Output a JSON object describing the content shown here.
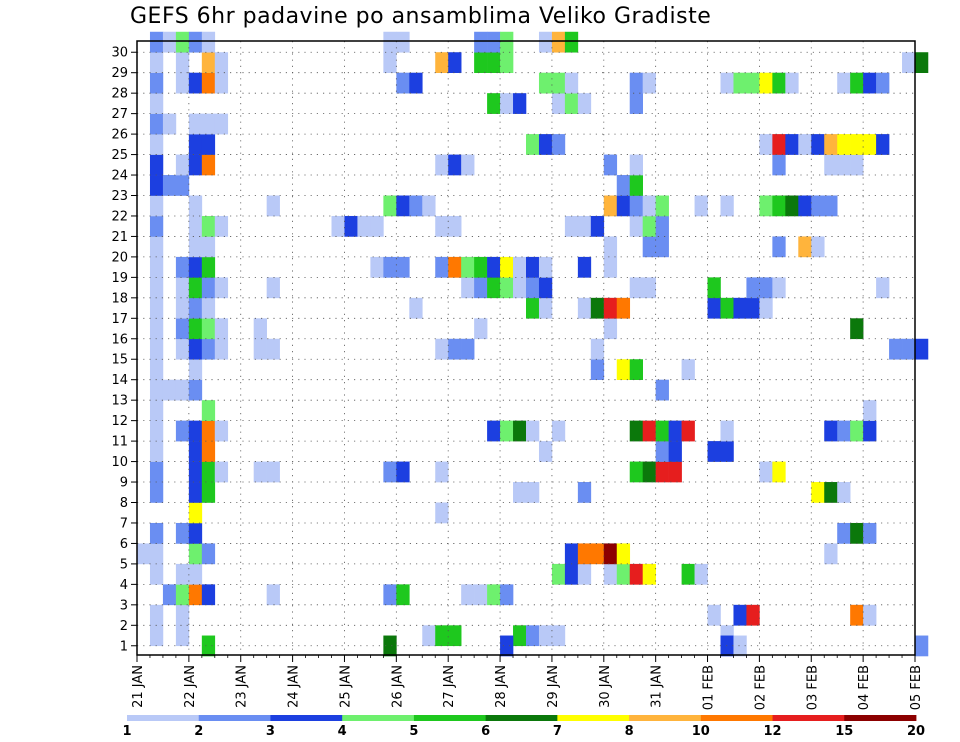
{
  "chart_data": {
    "type": "heatmap",
    "title": "GEFS 6hr padavine po ansamblima Veliko Gradiste",
    "xlabel": "",
    "ylabel": "",
    "x_ticks": [
      "21 JAN",
      "22 JAN",
      "23 JAN",
      "24 JAN",
      "25 JAN",
      "26 JAN",
      "27 JAN",
      "28 JAN",
      "29 JAN",
      "30 JAN",
      "31 JAN",
      "01 FEB",
      "02 FEB",
      "03 FEB",
      "04 FEB",
      "05 FEB"
    ],
    "y_ticks": [
      "1",
      "2",
      "3",
      "4",
      "5",
      "6",
      "7",
      "8",
      "9",
      "10",
      "11",
      "12",
      "13",
      "14",
      "15",
      "16",
      "17",
      "18",
      "19",
      "20",
      "21",
      "22",
      "23",
      "24",
      "25",
      "26",
      "27",
      "28",
      "29",
      "30"
    ],
    "color_scale": {
      "levels": [
        "1",
        "2",
        "3",
        "4",
        "5",
        "6",
        "7",
        "8",
        "10",
        "12",
        "15",
        "20"
      ],
      "colors": [
        "#b9c9f7",
        "#6a8ef2",
        "#1c3fe0",
        "#6ef06e",
        "#1ec81e",
        "#0b780b",
        "#ffff00",
        "#ffb43c",
        "#ff7800",
        "#e61e1e",
        "#8c0000"
      ]
    },
    "cells": [
      [
        1,
        1,
        1
      ],
      [
        1,
        3,
        1
      ],
      [
        1,
        22,
        1
      ],
      [
        1,
        23,
        5
      ],
      [
        1,
        24,
        5
      ],
      [
        1,
        29,
        5
      ],
      [
        1,
        30,
        2
      ],
      [
        1,
        31,
        1
      ],
      [
        1,
        32,
        1
      ],
      [
        1,
        45,
        1
      ],
      [
        2,
        1,
        1
      ],
      [
        2,
        3,
        1
      ],
      [
        2,
        44,
        1
      ],
      [
        2,
        46,
        3
      ],
      [
        2,
        47,
        10
      ],
      [
        2,
        55,
        9
      ],
      [
        2,
        56,
        1
      ],
      [
        3,
        2,
        2
      ],
      [
        3,
        3,
        4
      ],
      [
        3,
        4,
        9
      ],
      [
        3,
        5,
        3
      ],
      [
        3,
        10,
        1
      ],
      [
        3,
        19,
        2
      ],
      [
        3,
        20,
        5
      ],
      [
        3,
        25,
        1
      ],
      [
        3,
        26,
        1
      ],
      [
        3,
        27,
        4
      ],
      [
        3,
        28,
        2
      ],
      [
        4,
        1,
        1
      ],
      [
        4,
        3,
        1
      ],
      [
        4,
        4,
        1
      ],
      [
        4,
        32,
        4
      ],
      [
        4,
        33,
        3
      ],
      [
        4,
        34,
        1
      ],
      [
        4,
        36,
        1
      ],
      [
        4,
        37,
        4
      ],
      [
        4,
        38,
        10
      ],
      [
        4,
        39,
        7
      ],
      [
        4,
        42,
        5
      ],
      [
        4,
        43,
        1
      ],
      [
        5,
        0,
        1
      ],
      [
        5,
        1,
        1
      ],
      [
        5,
        4,
        4
      ],
      [
        5,
        5,
        2
      ],
      [
        5,
        33,
        3
      ],
      [
        5,
        34,
        9
      ],
      [
        5,
        35,
        9
      ],
      [
        5,
        36,
        11
      ],
      [
        5,
        37,
        7
      ],
      [
        5,
        53,
        1
      ],
      [
        6,
        1,
        2
      ],
      [
        6,
        3,
        2
      ],
      [
        6,
        4,
        3
      ],
      [
        6,
        54,
        2
      ],
      [
        6,
        55,
        6
      ],
      [
        6,
        56,
        2
      ],
      [
        7,
        4,
        7
      ],
      [
        7,
        23,
        1
      ],
      [
        8,
        1,
        2
      ],
      [
        8,
        4,
        3
      ],
      [
        8,
        5,
        5
      ],
      [
        8,
        29,
        1
      ],
      [
        8,
        30,
        1
      ],
      [
        8,
        34,
        2
      ],
      [
        8,
        52,
        7
      ],
      [
        8,
        53,
        6
      ],
      [
        8,
        54,
        1
      ],
      [
        9,
        1,
        2
      ],
      [
        9,
        4,
        3
      ],
      [
        9,
        5,
        5
      ],
      [
        9,
        6,
        1
      ],
      [
        9,
        9,
        1
      ],
      [
        9,
        10,
        1
      ],
      [
        9,
        19,
        2
      ],
      [
        9,
        20,
        3
      ],
      [
        9,
        23,
        1
      ],
      [
        9,
        38,
        5
      ],
      [
        9,
        39,
        6
      ],
      [
        9,
        40,
        10
      ],
      [
        9,
        41,
        10
      ],
      [
        9,
        48,
        1
      ],
      [
        9,
        49,
        7
      ],
      [
        10,
        1,
        1
      ],
      [
        10,
        4,
        3
      ],
      [
        10,
        5,
        9
      ],
      [
        10,
        31,
        1
      ],
      [
        10,
        40,
        2
      ],
      [
        10,
        41,
        3
      ],
      [
        10,
        44,
        3
      ],
      [
        10,
        45,
        3
      ],
      [
        11,
        1,
        1
      ],
      [
        11,
        3,
        2
      ],
      [
        11,
        4,
        3
      ],
      [
        11,
        5,
        9
      ],
      [
        11,
        6,
        1
      ],
      [
        11,
        27,
        3
      ],
      [
        11,
        28,
        4
      ],
      [
        11,
        29,
        6
      ],
      [
        11,
        30,
        1
      ],
      [
        11,
        32,
        1
      ],
      [
        11,
        38,
        6
      ],
      [
        11,
        39,
        10
      ],
      [
        11,
        40,
        5
      ],
      [
        11,
        41,
        3
      ],
      [
        11,
        42,
        10
      ],
      [
        11,
        45,
        1
      ],
      [
        11,
        53,
        3
      ],
      [
        11,
        54,
        2
      ],
      [
        11,
        55,
        4
      ],
      [
        11,
        56,
        3
      ],
      [
        12,
        1,
        1
      ],
      [
        12,
        5,
        4
      ],
      [
        12,
        56,
        1
      ],
      [
        13,
        1,
        1
      ],
      [
        13,
        2,
        1
      ],
      [
        13,
        3,
        1
      ],
      [
        13,
        4,
        2
      ],
      [
        13,
        40,
        2
      ],
      [
        14,
        1,
        1
      ],
      [
        14,
        4,
        1
      ],
      [
        14,
        35,
        2
      ],
      [
        14,
        37,
        7
      ],
      [
        14,
        38,
        5
      ],
      [
        14,
        42,
        1
      ],
      [
        15,
        1,
        1
      ],
      [
        15,
        3,
        1
      ],
      [
        15,
        4,
        3
      ],
      [
        15,
        5,
        2
      ],
      [
        15,
        6,
        1
      ],
      [
        15,
        9,
        1
      ],
      [
        15,
        10,
        1
      ],
      [
        15,
        23,
        1
      ],
      [
        15,
        24,
        2
      ],
      [
        15,
        25,
        2
      ],
      [
        15,
        35,
        1
      ],
      [
        15,
        58,
        2
      ],
      [
        15,
        59,
        2
      ],
      [
        15,
        60,
        3
      ],
      [
        16,
        1,
        1
      ],
      [
        16,
        3,
        2
      ],
      [
        16,
        4,
        5
      ],
      [
        16,
        5,
        4
      ],
      [
        16,
        6,
        1
      ],
      [
        16,
        9,
        1
      ],
      [
        16,
        26,
        1
      ],
      [
        16,
        36,
        1
      ],
      [
        16,
        55,
        6
      ],
      [
        17,
        1,
        1
      ],
      [
        17,
        3,
        1
      ],
      [
        17,
        4,
        2
      ],
      [
        17,
        5,
        1
      ],
      [
        17,
        21,
        1
      ],
      [
        17,
        30,
        5
      ],
      [
        17,
        31,
        1
      ],
      [
        17,
        34,
        1
      ],
      [
        17,
        35,
        6
      ],
      [
        17,
        36,
        10
      ],
      [
        17,
        37,
        9
      ],
      [
        17,
        44,
        3
      ],
      [
        17,
        45,
        5
      ],
      [
        17,
        46,
        3
      ],
      [
        17,
        47,
        3
      ],
      [
        17,
        48,
        1
      ],
      [
        18,
        1,
        1
      ],
      [
        18,
        3,
        1
      ],
      [
        18,
        4,
        5
      ],
      [
        18,
        5,
        2
      ],
      [
        18,
        6,
        1
      ],
      [
        18,
        10,
        1
      ],
      [
        18,
        25,
        1
      ],
      [
        18,
        26,
        2
      ],
      [
        18,
        27,
        5
      ],
      [
        18,
        28,
        4
      ],
      [
        18,
        29,
        1
      ],
      [
        18,
        30,
        2
      ],
      [
        18,
        31,
        3
      ],
      [
        18,
        38,
        1
      ],
      [
        18,
        39,
        1
      ],
      [
        18,
        44,
        5
      ],
      [
        18,
        47,
        2
      ],
      [
        18,
        48,
        2
      ],
      [
        18,
        49,
        1
      ],
      [
        18,
        57,
        1
      ],
      [
        19,
        1,
        1
      ],
      [
        19,
        3,
        2
      ],
      [
        19,
        4,
        3
      ],
      [
        19,
        5,
        5
      ],
      [
        19,
        18,
        1
      ],
      [
        19,
        19,
        2
      ],
      [
        19,
        20,
        2
      ],
      [
        19,
        23,
        2
      ],
      [
        19,
        24,
        9
      ],
      [
        19,
        25,
        4
      ],
      [
        19,
        26,
        5
      ],
      [
        19,
        27,
        3
      ],
      [
        19,
        28,
        7
      ],
      [
        19,
        29,
        1
      ],
      [
        19,
        30,
        3
      ],
      [
        19,
        31,
        1
      ],
      [
        19,
        34,
        3
      ],
      [
        19,
        36,
        1
      ],
      [
        20,
        1,
        1
      ],
      [
        20,
        4,
        1
      ],
      [
        20,
        5,
        1
      ],
      [
        20,
        36,
        1
      ],
      [
        20,
        39,
        2
      ],
      [
        20,
        40,
        2
      ],
      [
        20,
        49,
        2
      ],
      [
        20,
        51,
        8
      ],
      [
        20,
        52,
        1
      ],
      [
        21,
        1,
        2
      ],
      [
        21,
        4,
        1
      ],
      [
        21,
        5,
        4
      ],
      [
        21,
        6,
        1
      ],
      [
        21,
        15,
        1
      ],
      [
        21,
        16,
        3
      ],
      [
        21,
        17,
        1
      ],
      [
        21,
        18,
        1
      ],
      [
        21,
        23,
        1
      ],
      [
        21,
        24,
        1
      ],
      [
        21,
        33,
        1
      ],
      [
        21,
        34,
        1
      ],
      [
        21,
        35,
        3
      ],
      [
        21,
        38,
        1
      ],
      [
        21,
        39,
        4
      ],
      [
        21,
        40,
        2
      ],
      [
        22,
        1,
        1
      ],
      [
        22,
        4,
        1
      ],
      [
        22,
        10,
        1
      ],
      [
        22,
        19,
        4
      ],
      [
        22,
        20,
        3
      ],
      [
        22,
        21,
        2
      ],
      [
        22,
        22,
        1
      ],
      [
        22,
        36,
        8
      ],
      [
        22,
        37,
        3
      ],
      [
        22,
        38,
        2
      ],
      [
        22,
        39,
        1
      ],
      [
        22,
        40,
        4
      ],
      [
        22,
        43,
        1
      ],
      [
        22,
        45,
        1
      ],
      [
        22,
        48,
        4
      ],
      [
        22,
        49,
        5
      ],
      [
        22,
        50,
        6
      ],
      [
        22,
        51,
        3
      ],
      [
        22,
        52,
        2
      ],
      [
        22,
        53,
        2
      ],
      [
        23,
        1,
        3
      ],
      [
        23,
        2,
        2
      ],
      [
        23,
        3,
        2
      ],
      [
        23,
        37,
        2
      ],
      [
        23,
        38,
        5
      ],
      [
        24,
        1,
        3
      ],
      [
        24,
        3,
        1
      ],
      [
        24,
        4,
        3
      ],
      [
        24,
        5,
        9
      ],
      [
        24,
        23,
        1
      ],
      [
        24,
        24,
        3
      ],
      [
        24,
        25,
        1
      ],
      [
        24,
        36,
        2
      ],
      [
        24,
        38,
        1
      ],
      [
        24,
        49,
        2
      ],
      [
        24,
        53,
        1
      ],
      [
        24,
        54,
        1
      ],
      [
        24,
        55,
        1
      ],
      [
        25,
        1,
        1
      ],
      [
        25,
        4,
        3
      ],
      [
        25,
        5,
        3
      ],
      [
        25,
        30,
        4
      ],
      [
        25,
        31,
        3
      ],
      [
        25,
        32,
        2
      ],
      [
        25,
        48,
        1
      ],
      [
        25,
        49,
        10
      ],
      [
        25,
        50,
        3
      ],
      [
        25,
        51,
        1
      ],
      [
        25,
        52,
        3
      ],
      [
        25,
        53,
        8
      ],
      [
        25,
        54,
        7
      ],
      [
        25,
        55,
        7
      ],
      [
        25,
        56,
        7
      ],
      [
        25,
        57,
        3
      ],
      [
        26,
        1,
        2
      ],
      [
        26,
        2,
        1
      ],
      [
        26,
        4,
        1
      ],
      [
        26,
        5,
        1
      ],
      [
        26,
        6,
        1
      ],
      [
        27,
        1,
        1
      ],
      [
        27,
        27,
        5
      ],
      [
        27,
        28,
        1
      ],
      [
        27,
        29,
        3
      ],
      [
        27,
        32,
        1
      ],
      [
        27,
        33,
        4
      ],
      [
        27,
        34,
        1
      ],
      [
        27,
        38,
        2
      ],
      [
        28,
        1,
        2
      ],
      [
        28,
        3,
        1
      ],
      [
        28,
        4,
        3
      ],
      [
        28,
        5,
        9
      ],
      [
        28,
        6,
        1
      ],
      [
        28,
        20,
        2
      ],
      [
        28,
        21,
        3
      ],
      [
        28,
        31,
        4
      ],
      [
        28,
        32,
        4
      ],
      [
        28,
        33,
        1
      ],
      [
        28,
        38,
        2
      ],
      [
        28,
        39,
        1
      ],
      [
        28,
        45,
        1
      ],
      [
        28,
        46,
        4
      ],
      [
        28,
        47,
        4
      ],
      [
        28,
        48,
        7
      ],
      [
        28,
        49,
        5
      ],
      [
        28,
        50,
        1
      ],
      [
        28,
        54,
        1
      ],
      [
        28,
        55,
        5
      ],
      [
        28,
        56,
        3
      ],
      [
        28,
        57,
        2
      ],
      [
        29,
        1,
        1
      ],
      [
        29,
        3,
        1
      ],
      [
        29,
        5,
        8
      ],
      [
        29,
        6,
        1
      ],
      [
        29,
        19,
        1
      ],
      [
        29,
        23,
        8
      ],
      [
        29,
        24,
        3
      ],
      [
        29,
        26,
        5
      ],
      [
        29,
        27,
        5
      ],
      [
        29,
        28,
        4
      ],
      [
        29,
        59,
        1
      ],
      [
        29,
        60,
        6
      ],
      [
        30,
        1,
        2
      ],
      [
        30,
        2,
        1
      ],
      [
        30,
        3,
        4
      ],
      [
        30,
        4,
        2
      ],
      [
        30,
        5,
        1
      ],
      [
        30,
        19,
        1
      ],
      [
        30,
        20,
        1
      ],
      [
        30,
        26,
        2
      ],
      [
        30,
        27,
        2
      ],
      [
        30,
        28,
        4
      ],
      [
        30,
        31,
        1
      ],
      [
        30,
        32,
        8
      ],
      [
        30,
        33,
        5
      ],
      [
        0.5,
        5,
        5
      ],
      [
        0.5,
        19,
        6
      ],
      [
        0.5,
        28,
        3
      ],
      [
        0.5,
        45,
        3
      ],
      [
        0.5,
        46,
        1
      ],
      [
        0.5,
        60,
        2
      ]
    ]
  }
}
